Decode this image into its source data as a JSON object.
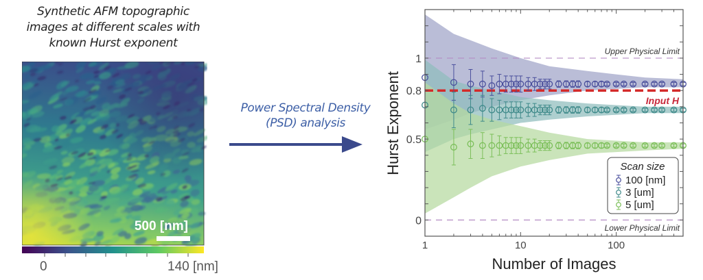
{
  "left_panel": {
    "caption_lines": [
      "Synthetic AFM topographic",
      "images at different scales with",
      "known Hurst exponent"
    ],
    "scale_bar_label": "500 [nm]",
    "colorbar": {
      "min_label": "0",
      "max_label": "140 [nm]"
    }
  },
  "middle": {
    "arrow_label_lines": [
      "Power Spectral Density",
      "(PSD) analysis"
    ],
    "arrow_color": "#3b4a8c",
    "text_color": "#3d5fa6"
  },
  "chart_data": {
    "type": "scatter",
    "title": "",
    "xlabel": "Number of Images",
    "ylabel": "Hurst Exponent",
    "xscale": "log",
    "xlim": [
      1,
      500
    ],
    "ylim": [
      -0.1,
      1.3
    ],
    "xticks": [
      1,
      10,
      100
    ],
    "xtick_labels": [
      "1",
      "10",
      "100"
    ],
    "yticks": [
      0,
      0.5,
      0.8,
      1
    ],
    "ytick_labels": [
      "0",
      "0.5",
      "0.8",
      "1"
    ],
    "reference_lines": [
      {
        "y": 1,
        "label": "Upper Physical Limit",
        "color": "#b48cc4",
        "style": "dashed"
      },
      {
        "y": 0,
        "label": "Lower Physical Limit",
        "color": "#b48cc4",
        "style": "dashed"
      },
      {
        "y": 0.8,
        "label": "Input H",
        "color": "#d42a2a",
        "style": "dashed"
      }
    ],
    "legend": {
      "title": "Scan size",
      "position": "lower-right"
    },
    "series": [
      {
        "name": "100 [nm]",
        "color": "#4a4f9c",
        "band_color": "#9fa3c8",
        "mean": 0.84,
        "x": [
          1,
          2,
          3,
          4,
          5,
          6,
          7,
          8,
          9,
          10,
          12,
          14,
          16,
          18,
          20,
          25,
          30,
          35,
          40,
          50,
          60,
          70,
          80,
          100,
          120,
          150,
          200,
          250,
          300,
          400,
          500
        ],
        "y": [
          0.88,
          0.85,
          0.84,
          0.84,
          0.83,
          0.84,
          0.84,
          0.84,
          0.84,
          0.84,
          0.84,
          0.84,
          0.84,
          0.84,
          0.84,
          0.84,
          0.84,
          0.84,
          0.84,
          0.84,
          0.84,
          0.84,
          0.84,
          0.84,
          0.84,
          0.84,
          0.84,
          0.84,
          0.84,
          0.84,
          0.84
        ],
        "err": [
          0.0,
          0.11,
          0.09,
          0.08,
          0.06,
          0.06,
          0.05,
          0.05,
          0.05,
          0.05,
          0.04,
          0.04,
          0.03,
          0.03,
          0.03,
          0.02,
          0.02,
          0.02,
          0.02,
          0.015,
          0.015,
          0.015,
          0.01,
          0.01,
          0.01,
          0.01,
          0.01,
          0.01,
          0.01,
          0.01,
          0.01
        ],
        "band": [
          [
            1,
            0.56,
            1.27
          ],
          [
            2,
            0.62,
            1.15
          ],
          [
            3,
            0.66,
            1.11
          ],
          [
            5,
            0.7,
            1.06
          ],
          [
            10,
            0.74,
            1.0
          ],
          [
            20,
            0.77,
            0.95
          ],
          [
            50,
            0.8,
            0.92
          ],
          [
            100,
            0.81,
            0.9
          ],
          [
            200,
            0.82,
            0.88
          ],
          [
            500,
            0.82,
            0.87
          ]
        ]
      },
      {
        "name": "3 [um]",
        "color": "#3f8a8a",
        "band_color": "#8fbcbc",
        "mean": 0.68,
        "x": [
          1,
          2,
          3,
          4,
          5,
          6,
          7,
          8,
          9,
          10,
          12,
          14,
          16,
          18,
          20,
          25,
          30,
          35,
          40,
          50,
          60,
          70,
          80,
          100,
          120,
          150,
          200,
          250,
          300,
          400,
          500
        ],
        "y": [
          0.71,
          0.68,
          0.68,
          0.69,
          0.68,
          0.68,
          0.68,
          0.68,
          0.68,
          0.68,
          0.68,
          0.68,
          0.68,
          0.68,
          0.68,
          0.68,
          0.68,
          0.68,
          0.68,
          0.68,
          0.68,
          0.68,
          0.68,
          0.68,
          0.68,
          0.68,
          0.68,
          0.68,
          0.68,
          0.68,
          0.68
        ],
        "err": [
          0.0,
          0.11,
          0.09,
          0.08,
          0.07,
          0.06,
          0.05,
          0.05,
          0.05,
          0.05,
          0.04,
          0.04,
          0.03,
          0.03,
          0.03,
          0.02,
          0.02,
          0.02,
          0.02,
          0.015,
          0.015,
          0.015,
          0.01,
          0.01,
          0.01,
          0.01,
          0.01,
          0.01,
          0.01,
          0.01,
          0.01
        ],
        "band": [
          [
            1,
            0.42,
            0.99
          ],
          [
            2,
            0.5,
            0.86
          ],
          [
            3,
            0.53,
            0.83
          ],
          [
            5,
            0.56,
            0.8
          ],
          [
            10,
            0.6,
            0.76
          ],
          [
            20,
            0.62,
            0.74
          ],
          [
            50,
            0.64,
            0.72
          ],
          [
            100,
            0.65,
            0.71
          ],
          [
            200,
            0.66,
            0.7
          ],
          [
            500,
            0.66,
            0.7
          ]
        ]
      },
      {
        "name": "5 [um]",
        "color": "#7cbf5a",
        "band_color": "#b5d9a0",
        "mean": 0.46,
        "x": [
          1,
          2,
          3,
          4,
          5,
          6,
          7,
          8,
          9,
          10,
          12,
          14,
          16,
          18,
          20,
          25,
          30,
          35,
          40,
          50,
          60,
          70,
          80,
          100,
          120,
          150,
          200,
          250,
          300,
          400,
          500
        ],
        "y": [
          0.5,
          0.45,
          0.47,
          0.46,
          0.46,
          0.46,
          0.46,
          0.46,
          0.46,
          0.46,
          0.46,
          0.46,
          0.46,
          0.46,
          0.46,
          0.46,
          0.46,
          0.46,
          0.46,
          0.46,
          0.46,
          0.46,
          0.46,
          0.46,
          0.46,
          0.46,
          0.46,
          0.46,
          0.46,
          0.46,
          0.46
        ],
        "err": [
          0.0,
          0.11,
          0.09,
          0.08,
          0.07,
          0.06,
          0.05,
          0.05,
          0.05,
          0.05,
          0.04,
          0.04,
          0.03,
          0.03,
          0.03,
          0.02,
          0.02,
          0.02,
          0.02,
          0.015,
          0.015,
          0.015,
          0.01,
          0.01,
          0.01,
          0.01,
          0.01,
          0.01,
          0.01,
          0.01,
          0.01
        ],
        "band": [
          [
            1,
            0.04,
            0.85
          ],
          [
            2,
            0.14,
            0.72
          ],
          [
            3,
            0.2,
            0.66
          ],
          [
            5,
            0.27,
            0.62
          ],
          [
            10,
            0.33,
            0.58
          ],
          [
            20,
            0.37,
            0.54
          ],
          [
            50,
            0.41,
            0.5
          ],
          [
            100,
            0.42,
            0.49
          ],
          [
            200,
            0.43,
            0.48
          ],
          [
            500,
            0.44,
            0.48
          ]
        ]
      }
    ]
  }
}
